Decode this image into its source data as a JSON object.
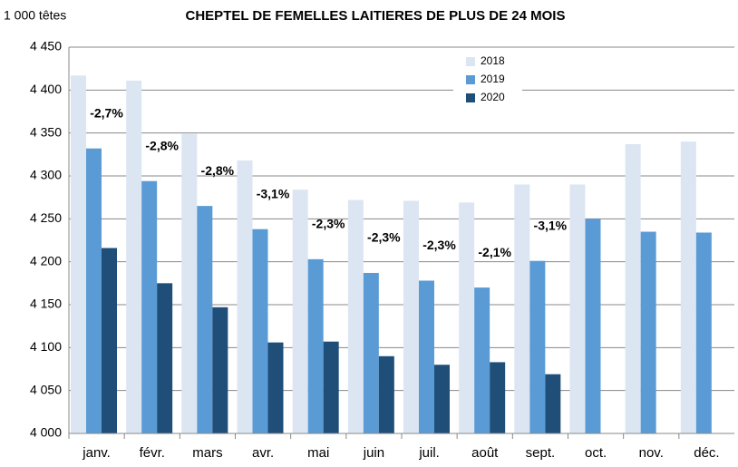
{
  "chart_data": {
    "type": "bar",
    "title": "CHEPTEL DE FEMELLES LAITIERES DE PLUS DE 24 MOIS",
    "y_label": "1 000 têtes",
    "categories": [
      "janv.",
      "févr.",
      "mars",
      "avr.",
      "mai",
      "juin",
      "juil.",
      "août",
      "sept.",
      "oct.",
      "nov.",
      "déc."
    ],
    "series": [
      {
        "name": "2018",
        "color": "#dce6f2",
        "values": [
          4417,
          4411,
          4349,
          4318,
          4284,
          4272,
          4271,
          4269,
          4290,
          4290,
          4337,
          4340
        ]
      },
      {
        "name": "2019",
        "color": "#5b9bd5",
        "values": [
          4332,
          4294,
          4265,
          4238,
          4203,
          4187,
          4178,
          4170,
          4201,
          4250,
          4235,
          4234
        ]
      },
      {
        "name": "2020",
        "color": "#1f4e79",
        "values": [
          4216,
          4175,
          4147,
          4106,
          4107,
          4090,
          4080,
          4083,
          4069,
          null,
          null,
          null
        ]
      }
    ],
    "annotations": [
      "-2,7%",
      "-2,8%",
      "-2,8%",
      "-3,1%",
      "-2,3%",
      "-2,3%",
      "-2,3%",
      "-2,1%",
      "-3,1%",
      null,
      null,
      null
    ],
    "ylim": [
      4000,
      4450
    ],
    "yticks": [
      {
        "value": 4000,
        "label": "4 000"
      },
      {
        "value": 4050,
        "label": "4 050"
      },
      {
        "value": 4100,
        "label": "4 100"
      },
      {
        "value": 4150,
        "label": "4 150"
      },
      {
        "value": 4200,
        "label": "4 200"
      },
      {
        "value": 4250,
        "label": "4 250"
      },
      {
        "value": 4300,
        "label": "4 300"
      },
      {
        "value": 4350,
        "label": "4 350"
      },
      {
        "value": 4400,
        "label": "4 400"
      },
      {
        "value": 4450,
        "label": "4 450"
      }
    ],
    "grid": true,
    "legend": "top"
  }
}
